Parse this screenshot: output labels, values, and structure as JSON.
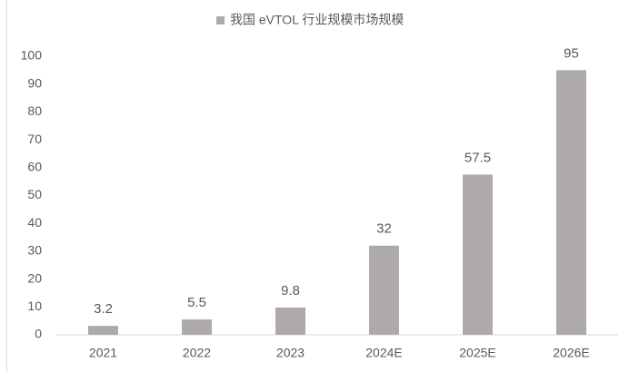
{
  "chart_data": {
    "type": "bar",
    "categories": [
      "2021",
      "2022",
      "2023",
      "2024E",
      "2025E",
      "2026E"
    ],
    "series": [
      {
        "name": "我国 eVTOL 行业规模市场规模",
        "color": "#aeaaaa",
        "values": [
          3.2,
          5.5,
          9.8,
          32,
          57.5,
          95
        ]
      }
    ],
    "ylim": [
      0,
      100
    ],
    "yticks": [
      0,
      10,
      20,
      30,
      40,
      50,
      60,
      70,
      80,
      90,
      100
    ],
    "grid": false,
    "legend": "top"
  }
}
